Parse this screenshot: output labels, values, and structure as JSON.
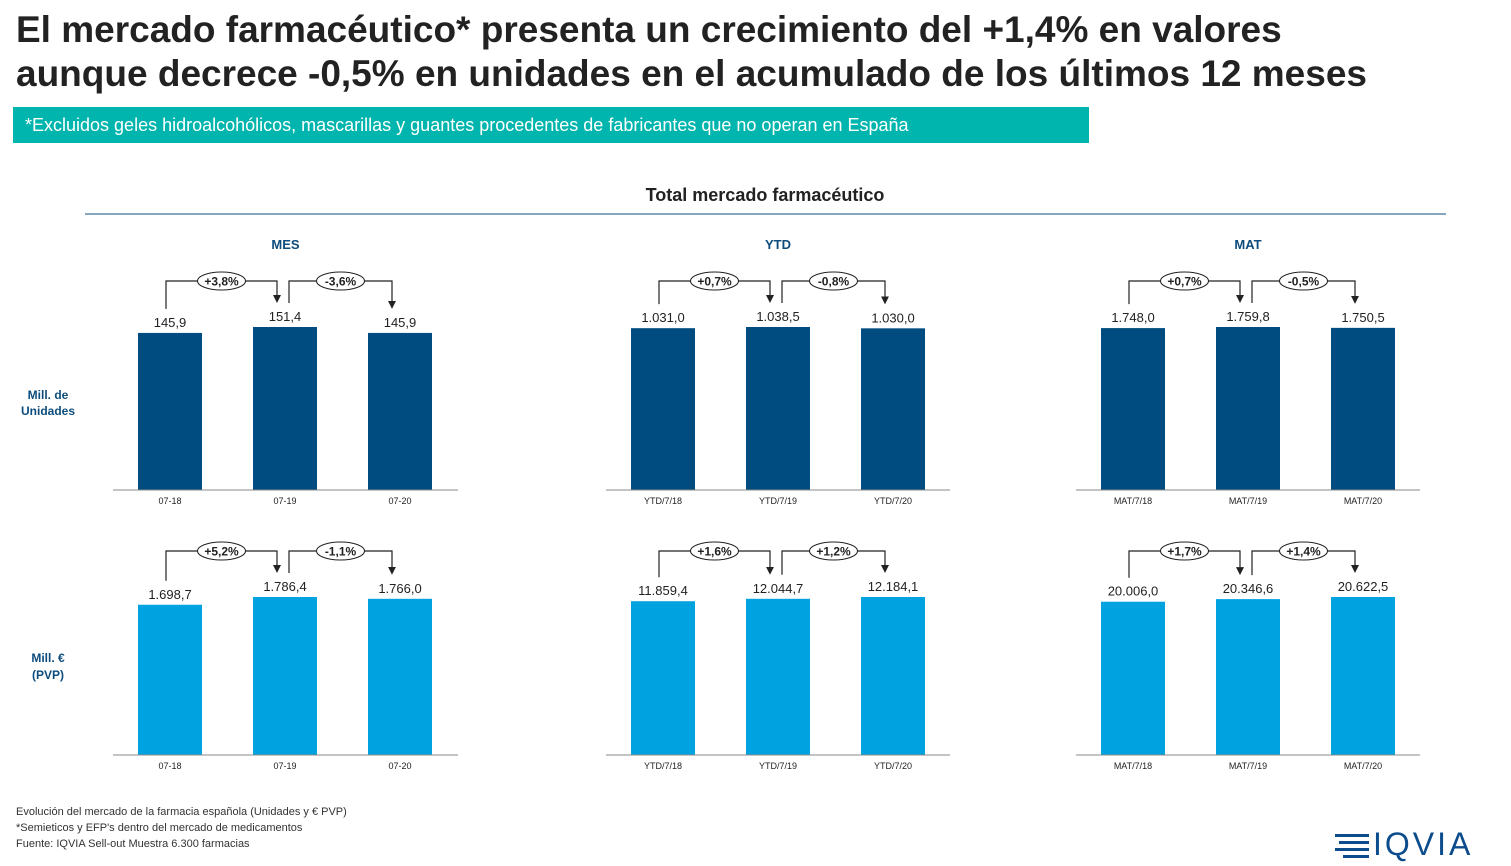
{
  "title": {
    "line1": "El mercado farmacéutico* presenta un crecimiento del +1,4% en valores",
    "line2": "aunque decrece -0,5% en unidades en el acumulado de los últimos 12 meses"
  },
  "banner": "*Excluidos geles hidroalcohólicos, mascarillas y guantes procedentes de fabricantes que no operan en España",
  "colors": {
    "units_bar": "#004b7f",
    "value_bar": "#00a3e0",
    "banner": "#00b5ad",
    "heading": "#0d4c7d"
  },
  "section_title": "Total mercado farmacéutico",
  "row_labels": [
    [
      "Mill. de",
      "Unidades"
    ],
    [
      "Mill. €",
      "(PVP)"
    ]
  ],
  "chart_data": [
    {
      "type": "bar",
      "row": 0,
      "col": 0,
      "panel_title": "MES",
      "categories": [
        "07-18",
        "07-19",
        "07-20"
      ],
      "values": [
        145.9,
        151.4,
        145.9
      ],
      "value_labels": [
        "145,9",
        "151,4",
        "145,9"
      ],
      "changes": [
        "+3,8%",
        "-3,6%"
      ]
    },
    {
      "type": "bar",
      "row": 0,
      "col": 1,
      "panel_title": "YTD",
      "categories": [
        "YTD/7/18",
        "YTD/7/19",
        "YTD/7/20"
      ],
      "values": [
        1031.0,
        1038.5,
        1030.0
      ],
      "value_labels": [
        "1.031,0",
        "1.038,5",
        "1.030,0"
      ],
      "changes": [
        "+0,7%",
        "-0,8%"
      ]
    },
    {
      "type": "bar",
      "row": 0,
      "col": 2,
      "panel_title": "MAT",
      "categories": [
        "MAT/7/18",
        "MAT/7/19",
        "MAT/7/20"
      ],
      "values": [
        1748.0,
        1759.8,
        1750.5
      ],
      "value_labels": [
        "1.748,0",
        "1.759,8",
        "1.750,5"
      ],
      "changes": [
        "+0,7%",
        "-0,5%"
      ]
    },
    {
      "type": "bar",
      "row": 1,
      "col": 0,
      "panel_title": "",
      "categories": [
        "07-18",
        "07-19",
        "07-20"
      ],
      "values": [
        1698.7,
        1786.4,
        1766.0
      ],
      "value_labels": [
        "1.698,7",
        "1.786,4",
        "1.766,0"
      ],
      "changes": [
        "+5,2%",
        "-1,1%"
      ]
    },
    {
      "type": "bar",
      "row": 1,
      "col": 1,
      "panel_title": "",
      "categories": [
        "YTD/7/18",
        "YTD/7/19",
        "YTD/7/20"
      ],
      "values": [
        11859.4,
        12044.7,
        12184.1
      ],
      "value_labels": [
        "11.859,4",
        "12.044,7",
        "12.184,1"
      ],
      "changes": [
        "+1,6%",
        "+1,2%"
      ]
    },
    {
      "type": "bar",
      "row": 1,
      "col": 2,
      "panel_title": "",
      "categories": [
        "MAT/7/18",
        "MAT/7/19",
        "MAT/7/20"
      ],
      "values": [
        20006.0,
        20346.6,
        20622.5
      ],
      "value_labels": [
        "20.006,0",
        "20.346,6",
        "20.622,5"
      ],
      "changes": [
        "+1,7%",
        "+1,4%"
      ]
    }
  ],
  "footnotes": [
    "Evolución del mercado de la farmacia española (Unidades y € PVP)",
    "*Semieticos y EFP's dentro del mercado de medicamentos",
    "Fuente: IQVIA Sell-out Muestra 6.300 farmacias"
  ],
  "logo": "IQVIA"
}
